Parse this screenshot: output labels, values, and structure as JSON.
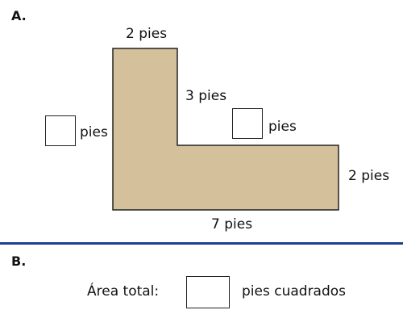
{
  "part_a": {
    "label": "A.",
    "shape_fill": "#d4c09a",
    "shape_stroke": "#222222",
    "dimensions": {
      "top": "2 pies",
      "inner_vertical": "3 pies",
      "inner_horizontal_unit": "pies",
      "left_unit": "pies",
      "right": "2 pies",
      "bottom": "7 pies"
    }
  },
  "divider_color": "#1f3f8f",
  "part_b": {
    "label": "B.",
    "area_label": "Área total:",
    "area_unit": "pies cuadrados"
  }
}
